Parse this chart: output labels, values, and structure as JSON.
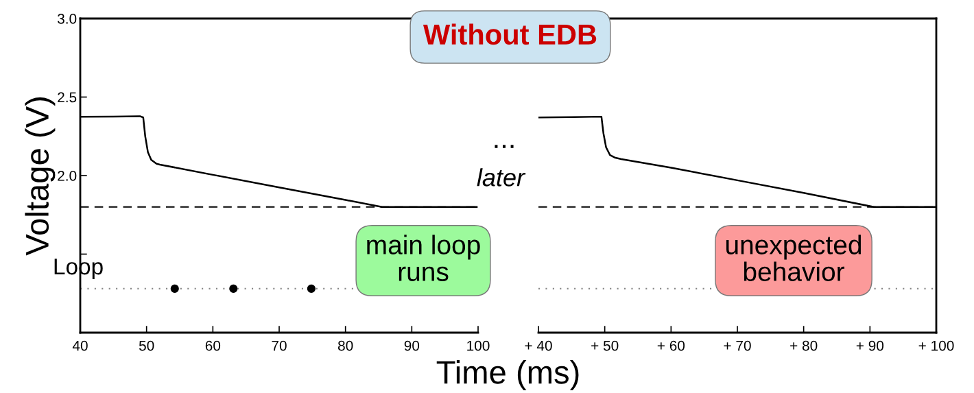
{
  "chart_data": [
    {
      "type": "line",
      "title": "Without EDB",
      "xlabel": "Time (ms)",
      "ylabel": "Voltage (V)",
      "xlim": [
        40,
        100
      ],
      "xticks": [
        40,
        50,
        60,
        70,
        80,
        90,
        100
      ],
      "ylim": [
        1.0,
        3.0
      ],
      "yticks": [
        {
          "value": 1.0,
          "label": null
        },
        {
          "value": 1.5,
          "label": null
        },
        {
          "value": 2.0,
          "label": "2.0"
        },
        {
          "value": 2.5,
          "label": "2.5"
        },
        {
          "value": 3.0,
          "label": "3.0"
        }
      ],
      "grid": false,
      "legend": false,
      "series": [
        {
          "color": "#000000",
          "x": [
            40,
            45,
            49,
            49.5,
            49.8,
            50.2,
            50.7,
            51.5,
            52,
            60,
            70,
            80,
            85.5,
            90,
            95,
            99.8
          ],
          "values": [
            2.375,
            2.376,
            2.378,
            2.37,
            2.25,
            2.15,
            2.1,
            2.075,
            2.07,
            2.005,
            1.925,
            1.845,
            1.8,
            1.8,
            1.8,
            1.8
          ]
        },
        {
          "type": "scatter",
          "name": "Loop",
          "color": "#000000",
          "marker": "circle",
          "x": [
            54.25,
            63.1,
            74.85
          ],
          "values": [
            1.28,
            1.28,
            1.28
          ]
        }
      ],
      "ref_lines": [
        {
          "axis": "y",
          "value": 1.8,
          "line_style": "dashed",
          "color": "#000000"
        },
        {
          "axis": "y",
          "value": 1.28,
          "line_style": "dotted",
          "color": "#888888"
        }
      ],
      "annotations": [
        "...",
        "later",
        "main loop\nruns"
      ]
    },
    {
      "type": "line",
      "tick_labels": "x",
      "xlim": [
        40,
        100
      ],
      "xticks": [
        {
          "value": 40,
          "label": "+ 40"
        },
        {
          "value": 50,
          "label": "+ 50"
        },
        {
          "value": 60,
          "label": "+ 60"
        },
        {
          "value": 70,
          "label": "+ 70"
        },
        {
          "value": 80,
          "label": "+ 80"
        },
        {
          "value": 90,
          "label": "+ 90"
        },
        {
          "value": 100,
          "label": "+ 100"
        }
      ],
      "ylim": [
        1.0,
        3.0
      ],
      "grid": false,
      "legend": false,
      "series": [
        {
          "color": "#000000",
          "x": [
            40,
            45,
            49.5,
            49.8,
            50.2,
            50.8,
            51.5,
            52.5,
            60,
            70,
            80,
            90.6,
            95,
            100
          ],
          "values": [
            2.37,
            2.372,
            2.375,
            2.27,
            2.18,
            2.13,
            2.115,
            2.105,
            2.05,
            1.97,
            1.89,
            1.8,
            1.8,
            1.8
          ]
        }
      ],
      "ref_lines": [
        {
          "axis": "y",
          "value": 1.8,
          "line_style": "dashed",
          "color": "#000000"
        },
        {
          "axis": "y",
          "value": 1.28,
          "line_style": "dotted",
          "color": "#888888"
        }
      ],
      "annotations": [
        "unexpected\nbehavior"
      ]
    }
  ]
}
